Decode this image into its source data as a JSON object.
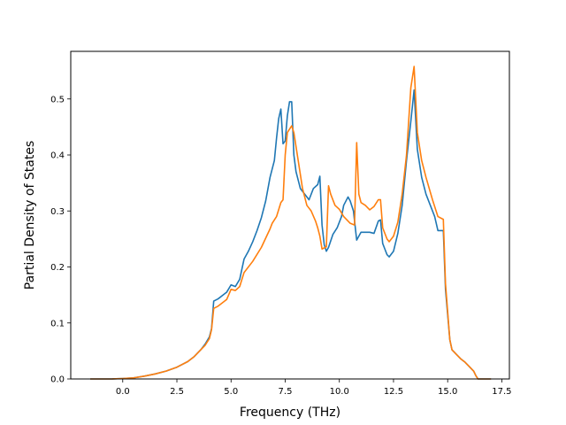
{
  "chart_data": {
    "type": "line",
    "title": "",
    "xlabel": "Frequency (THz)",
    "ylabel": "Partial Density of States",
    "xlim": [
      -2.4,
      17.85
    ],
    "ylim": [
      0.0,
      0.585
    ],
    "xticks": [
      0.0,
      2.5,
      5.0,
      7.5,
      10.0,
      12.5,
      15.0,
      17.5
    ],
    "xtick_labels": [
      "0.0",
      "2.5",
      "5.0",
      "7.5",
      "10.0",
      "12.5",
      "15.0",
      "17.5"
    ],
    "yticks": [
      0.0,
      0.1,
      0.2,
      0.3,
      0.4,
      0.5
    ],
    "ytick_labels": [
      "0.0",
      "0.1",
      "0.2",
      "0.3",
      "0.4",
      "0.5"
    ],
    "grid": false,
    "legend": "none",
    "series": [
      {
        "color": "#1f77b4",
        "points": [
          [
            -1.5,
            0.0
          ],
          [
            -0.5,
            0.0
          ],
          [
            0.0,
            0.0008
          ],
          [
            0.5,
            0.002
          ],
          [
            1.0,
            0.005
          ],
          [
            1.5,
            0.009
          ],
          [
            2.0,
            0.014
          ],
          [
            2.5,
            0.021
          ],
          [
            3.0,
            0.031
          ],
          [
            3.3,
            0.04
          ],
          [
            3.6,
            0.052
          ],
          [
            3.8,
            0.062
          ],
          [
            4.0,
            0.075
          ],
          [
            4.1,
            0.09
          ],
          [
            4.2,
            0.139
          ],
          [
            4.4,
            0.143
          ],
          [
            4.6,
            0.149
          ],
          [
            4.8,
            0.155
          ],
          [
            5.0,
            0.168
          ],
          [
            5.2,
            0.165
          ],
          [
            5.4,
            0.178
          ],
          [
            5.6,
            0.214
          ],
          [
            5.8,
            0.228
          ],
          [
            6.0,
            0.245
          ],
          [
            6.2,
            0.265
          ],
          [
            6.4,
            0.288
          ],
          [
            6.6,
            0.318
          ],
          [
            6.8,
            0.36
          ],
          [
            7.0,
            0.39
          ],
          [
            7.1,
            0.43
          ],
          [
            7.2,
            0.465
          ],
          [
            7.3,
            0.482
          ],
          [
            7.4,
            0.42
          ],
          [
            7.5,
            0.425
          ],
          [
            7.6,
            0.47
          ],
          [
            7.7,
            0.495
          ],
          [
            7.8,
            0.495
          ],
          [
            7.9,
            0.4
          ],
          [
            8.0,
            0.37
          ],
          [
            8.2,
            0.34
          ],
          [
            8.4,
            0.33
          ],
          [
            8.6,
            0.32
          ],
          [
            8.8,
            0.34
          ],
          [
            9.0,
            0.347
          ],
          [
            9.1,
            0.362
          ],
          [
            9.2,
            0.275
          ],
          [
            9.3,
            0.24
          ],
          [
            9.4,
            0.228
          ],
          [
            9.5,
            0.235
          ],
          [
            9.7,
            0.258
          ],
          [
            9.9,
            0.27
          ],
          [
            10.1,
            0.29
          ],
          [
            10.2,
            0.31
          ],
          [
            10.4,
            0.325
          ],
          [
            10.5,
            0.318
          ],
          [
            10.65,
            0.3
          ],
          [
            10.8,
            0.248
          ],
          [
            11.0,
            0.262
          ],
          [
            11.2,
            0.262
          ],
          [
            11.4,
            0.262
          ],
          [
            11.6,
            0.26
          ],
          [
            11.8,
            0.282
          ],
          [
            11.9,
            0.284
          ],
          [
            12.0,
            0.242
          ],
          [
            12.1,
            0.232
          ],
          [
            12.2,
            0.222
          ],
          [
            12.3,
            0.218
          ],
          [
            12.5,
            0.228
          ],
          [
            12.7,
            0.26
          ],
          [
            12.9,
            0.31
          ],
          [
            13.1,
            0.39
          ],
          [
            13.3,
            0.46
          ],
          [
            13.45,
            0.516
          ],
          [
            13.6,
            0.41
          ],
          [
            13.8,
            0.36
          ],
          [
            14.0,
            0.33
          ],
          [
            14.2,
            0.31
          ],
          [
            14.4,
            0.29
          ],
          [
            14.55,
            0.265
          ],
          [
            14.8,
            0.265
          ],
          [
            14.9,
            0.16
          ],
          [
            15.0,
            0.115
          ],
          [
            15.1,
            0.07
          ],
          [
            15.2,
            0.052
          ],
          [
            15.4,
            0.044
          ],
          [
            15.6,
            0.036
          ],
          [
            15.8,
            0.03
          ],
          [
            16.0,
            0.022
          ],
          [
            16.2,
            0.014
          ],
          [
            16.3,
            0.006
          ],
          [
            16.4,
            0.0
          ],
          [
            17.0,
            0.0
          ]
        ]
      },
      {
        "color": "#ff7f0e",
        "points": [
          [
            -1.5,
            0.0
          ],
          [
            -0.5,
            0.0
          ],
          [
            0.0,
            0.0008
          ],
          [
            0.5,
            0.002
          ],
          [
            1.0,
            0.005
          ],
          [
            1.5,
            0.009
          ],
          [
            2.0,
            0.014
          ],
          [
            2.5,
            0.021
          ],
          [
            3.0,
            0.031
          ],
          [
            3.3,
            0.04
          ],
          [
            3.6,
            0.052
          ],
          [
            3.8,
            0.06
          ],
          [
            4.0,
            0.072
          ],
          [
            4.1,
            0.088
          ],
          [
            4.2,
            0.126
          ],
          [
            4.4,
            0.13
          ],
          [
            4.6,
            0.136
          ],
          [
            4.8,
            0.142
          ],
          [
            5.0,
            0.16
          ],
          [
            5.2,
            0.158
          ],
          [
            5.4,
            0.165
          ],
          [
            5.6,
            0.19
          ],
          [
            6.0,
            0.21
          ],
          [
            6.4,
            0.235
          ],
          [
            6.8,
            0.268
          ],
          [
            6.9,
            0.278
          ],
          [
            7.1,
            0.29
          ],
          [
            7.3,
            0.315
          ],
          [
            7.4,
            0.32
          ],
          [
            7.5,
            0.4
          ],
          [
            7.6,
            0.44
          ],
          [
            7.8,
            0.452
          ],
          [
            7.9,
            0.44
          ],
          [
            8.1,
            0.39
          ],
          [
            8.3,
            0.34
          ],
          [
            8.5,
            0.31
          ],
          [
            8.7,
            0.3
          ],
          [
            8.9,
            0.282
          ],
          [
            9.0,
            0.27
          ],
          [
            9.1,
            0.255
          ],
          [
            9.2,
            0.232
          ],
          [
            9.4,
            0.236
          ],
          [
            9.5,
            0.345
          ],
          [
            9.6,
            0.33
          ],
          [
            9.8,
            0.31
          ],
          [
            10.0,
            0.303
          ],
          [
            10.2,
            0.29
          ],
          [
            10.5,
            0.278
          ],
          [
            10.7,
            0.275
          ],
          [
            10.8,
            0.422
          ],
          [
            10.9,
            0.33
          ],
          [
            11.0,
            0.315
          ],
          [
            11.2,
            0.31
          ],
          [
            11.4,
            0.302
          ],
          [
            11.6,
            0.308
          ],
          [
            11.8,
            0.32
          ],
          [
            11.9,
            0.32
          ],
          [
            12.0,
            0.27
          ],
          [
            12.2,
            0.25
          ],
          [
            12.3,
            0.245
          ],
          [
            12.5,
            0.255
          ],
          [
            12.7,
            0.28
          ],
          [
            12.9,
            0.33
          ],
          [
            13.1,
            0.4
          ],
          [
            13.3,
            0.52
          ],
          [
            13.45,
            0.558
          ],
          [
            13.6,
            0.44
          ],
          [
            13.8,
            0.39
          ],
          [
            14.0,
            0.36
          ],
          [
            14.3,
            0.32
          ],
          [
            14.55,
            0.29
          ],
          [
            14.8,
            0.285
          ],
          [
            14.9,
            0.17
          ],
          [
            15.0,
            0.12
          ],
          [
            15.1,
            0.07
          ],
          [
            15.2,
            0.052
          ],
          [
            15.4,
            0.044
          ],
          [
            15.6,
            0.036
          ],
          [
            15.8,
            0.03
          ],
          [
            16.0,
            0.022
          ],
          [
            16.2,
            0.014
          ],
          [
            16.3,
            0.006
          ],
          [
            16.4,
            0.0
          ],
          [
            17.0,
            0.0
          ]
        ]
      }
    ]
  }
}
